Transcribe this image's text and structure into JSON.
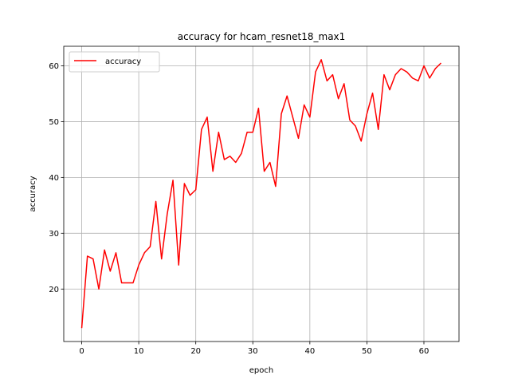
{
  "chart_data": {
    "type": "line",
    "title": "accuracy for hcam_resnet18_max1",
    "xlabel": "epoch",
    "ylabel": "accuracy",
    "xlim": [
      -3.15,
      66.15
    ],
    "ylim": [
      10.6,
      63.5
    ],
    "xticks": [
      0,
      10,
      20,
      30,
      40,
      50,
      60
    ],
    "yticks": [
      20,
      30,
      40,
      50,
      60
    ],
    "grid": true,
    "legend_position": "top-left",
    "series": [
      {
        "name": "accuracy",
        "color": "#ff0000",
        "x": [
          0,
          1,
          2,
          3,
          4,
          5,
          6,
          7,
          8,
          9,
          10,
          11,
          12,
          13,
          14,
          15,
          16,
          17,
          18,
          19,
          20,
          21,
          22,
          23,
          24,
          25,
          26,
          27,
          28,
          29,
          30,
          31,
          32,
          33,
          34,
          35,
          36,
          37,
          38,
          39,
          40,
          41,
          42,
          43,
          44,
          45,
          46,
          47,
          48,
          49,
          50,
          51,
          52,
          53,
          54,
          55,
          56,
          57,
          58,
          59,
          60,
          61,
          62,
          63
        ],
        "values": [
          13.0,
          25.9,
          25.4,
          20.0,
          27.0,
          23.2,
          26.5,
          21.1,
          21.1,
          21.1,
          24.3,
          26.5,
          27.6,
          35.7,
          25.4,
          33.5,
          39.5,
          24.3,
          38.9,
          36.8,
          37.8,
          48.6,
          50.8,
          41.1,
          48.1,
          43.2,
          43.8,
          42.7,
          44.3,
          48.1,
          48.1,
          52.4,
          41.1,
          42.7,
          38.4,
          51.4,
          54.6,
          50.8,
          47.0,
          53.0,
          50.8,
          58.9,
          61.1,
          57.3,
          58.4,
          54.1,
          56.8,
          50.3,
          49.2,
          46.5,
          51.4,
          55.1,
          48.6,
          58.4,
          55.7,
          58.4,
          59.5,
          58.9,
          57.8,
          57.3,
          60.0,
          57.8,
          59.5,
          60.5
        ]
      }
    ]
  }
}
